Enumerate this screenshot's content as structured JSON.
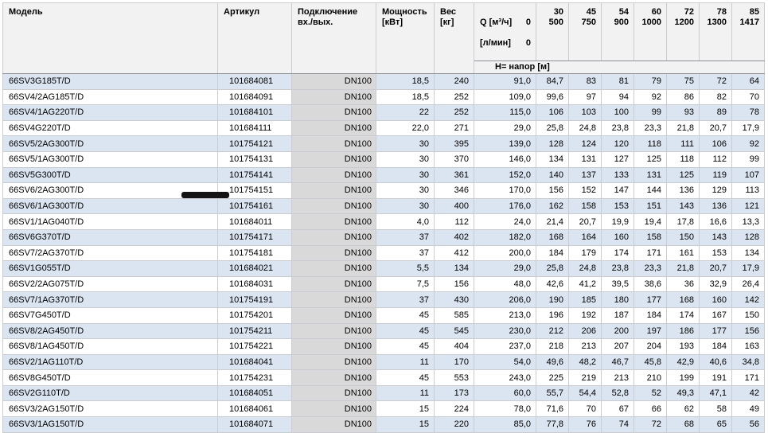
{
  "colors": {
    "header_bg": "#f2f2f2",
    "row_alt": "#dbe5f1",
    "conn_bg": "#d9d9d9",
    "border": "#c9cdd2",
    "header_line": "#8f9398"
  },
  "table": {
    "headers": {
      "model": "Модель",
      "article": "Артикул",
      "connection": "Подключение\nвх./вых.",
      "power": "Мощность\n[кВт]",
      "weight": "Вес\n[кг]"
    },
    "q_header": {
      "label1": "Q [м³/ч]",
      "zero1": "0",
      "label2": "[л/мин]",
      "zero2": "0"
    },
    "flow_columns": [
      {
        "m3h": "30",
        "lmin": "500"
      },
      {
        "m3h": "45",
        "lmin": "750"
      },
      {
        "m3h": "54",
        "lmin": "900"
      },
      {
        "m3h": "60",
        "lmin": "1000"
      },
      {
        "m3h": "72",
        "lmin": "1200"
      },
      {
        "m3h": "78",
        "lmin": "1300"
      },
      {
        "m3h": "85",
        "lmin": "1417"
      }
    ],
    "head_subheader": "Н= напор [м]",
    "rows": [
      {
        "model": "66SV3G185T/D",
        "article": "101684081",
        "connection": "DN100",
        "power": "18,5",
        "weight": "240",
        "heads": [
          "91,0",
          "84,7",
          "83",
          "81",
          "79",
          "75",
          "72",
          "64"
        ]
      },
      {
        "model": "66SV4/2AG185T/D",
        "article": "101684091",
        "connection": "DN100",
        "power": "18,5",
        "weight": "252",
        "heads": [
          "109,0",
          "99,6",
          "97",
          "94",
          "92",
          "86",
          "82",
          "70"
        ]
      },
      {
        "model": "66SV4/1AG220T/D",
        "article": "101684101",
        "connection": "DN100",
        "power": "22",
        "weight": "252",
        "heads": [
          "115,0",
          "106",
          "103",
          "100",
          "99",
          "93",
          "89",
          "78"
        ]
      },
      {
        "model": "66SV4G220T/D",
        "article": "101684111",
        "connection": "DN100",
        "power": "22,0",
        "weight": "271",
        "heads": [
          "29,0",
          "25,8",
          "24,8",
          "23,8",
          "23,3",
          "21,8",
          "20,7",
          "17,9"
        ]
      },
      {
        "model": "66SV5/2AG300T/D",
        "article": "101754121",
        "connection": "DN100",
        "power": "30",
        "weight": "395",
        "heads": [
          "139,0",
          "128",
          "124",
          "120",
          "118",
          "111",
          "106",
          "92"
        ]
      },
      {
        "model": "66SV5/1AG300T/D",
        "article": "101754131",
        "connection": "DN100",
        "power": "30",
        "weight": "370",
        "heads": [
          "146,0",
          "134",
          "131",
          "127",
          "125",
          "118",
          "112",
          "99"
        ]
      },
      {
        "model": "66SV5G300T/D",
        "article": "101754141",
        "connection": "DN100",
        "power": "30",
        "weight": "361",
        "heads": [
          "152,0",
          "140",
          "137",
          "133",
          "131",
          "125",
          "119",
          "107"
        ]
      },
      {
        "model": "66SV6/2AG300T/D",
        "article": "101754151",
        "connection": "DN100",
        "power": "30",
        "weight": "346",
        "heads": [
          "170,0",
          "156",
          "152",
          "147",
          "144",
          "136",
          "129",
          "113"
        ]
      },
      {
        "model": "66SV6/1AG300T/D",
        "article": "101754161",
        "connection": "DN100",
        "power": "30",
        "weight": "400",
        "heads": [
          "176,0",
          "162",
          "158",
          "153",
          "151",
          "143",
          "136",
          "121"
        ]
      },
      {
        "model": "66SV1/1AG040T/D",
        "article": "101684011",
        "connection": "DN100",
        "power": "4,0",
        "weight": "112",
        "heads": [
          "24,0",
          "21,4",
          "20,7",
          "19,9",
          "19,4",
          "17,8",
          "16,6",
          "13,3"
        ]
      },
      {
        "model": "66SV6G370T/D",
        "article": "101754171",
        "connection": "DN100",
        "power": "37",
        "weight": "402",
        "heads": [
          "182,0",
          "168",
          "164",
          "160",
          "158",
          "150",
          "143",
          "128"
        ]
      },
      {
        "model": "66SV7/2AG370T/D",
        "article": "101754181",
        "connection": "DN100",
        "power": "37",
        "weight": "412",
        "heads": [
          "200,0",
          "184",
          "179",
          "174",
          "171",
          "161",
          "153",
          "134"
        ]
      },
      {
        "model": "66SV1G055T/D",
        "article": "101684021",
        "connection": "DN100",
        "power": "5,5",
        "weight": "134",
        "heads": [
          "29,0",
          "25,8",
          "24,8",
          "23,8",
          "23,3",
          "21,8",
          "20,7",
          "17,9"
        ]
      },
      {
        "model": "66SV2/2AG075T/D",
        "article": "101684031",
        "connection": "DN100",
        "power": "7,5",
        "weight": "156",
        "heads": [
          "48,0",
          "42,6",
          "41,2",
          "39,5",
          "38,6",
          "36",
          "32,9",
          "26,4"
        ]
      },
      {
        "model": "66SV7/1AG370T/D",
        "article": "101754191",
        "connection": "DN100",
        "power": "37",
        "weight": "430",
        "heads": [
          "206,0",
          "190",
          "185",
          "180",
          "177",
          "168",
          "160",
          "142"
        ]
      },
      {
        "model": "66SV7G450T/D",
        "article": "101754201",
        "connection": "DN100",
        "power": "45",
        "weight": "585",
        "heads": [
          "213,0",
          "196",
          "192",
          "187",
          "184",
          "174",
          "167",
          "150"
        ]
      },
      {
        "model": "66SV8/2AG450T/D",
        "article": "101754211",
        "connection": "DN100",
        "power": "45",
        "weight": "545",
        "heads": [
          "230,0",
          "212",
          "206",
          "200",
          "197",
          "186",
          "177",
          "156"
        ]
      },
      {
        "model": "66SV8/1AG450T/D",
        "article": "101754221",
        "connection": "DN100",
        "power": "45",
        "weight": "404",
        "heads": [
          "237,0",
          "218",
          "213",
          "207",
          "204",
          "193",
          "184",
          "163"
        ]
      },
      {
        "model": "66SV2/1AG110T/D",
        "article": "101684041",
        "connection": "DN100",
        "power": "11",
        "weight": "170",
        "heads": [
          "54,0",
          "49,6",
          "48,2",
          "46,7",
          "45,8",
          "42,9",
          "40,6",
          "34,8"
        ]
      },
      {
        "model": "66SV8G450T/D",
        "article": "101754231",
        "connection": "DN100",
        "power": "45",
        "weight": "553",
        "heads": [
          "243,0",
          "225",
          "219",
          "213",
          "210",
          "199",
          "191",
          "171"
        ]
      },
      {
        "model": "66SV2G110T/D",
        "article": "101684051",
        "connection": "DN100",
        "power": "11",
        "weight": "173",
        "heads": [
          "60,0",
          "55,7",
          "54,4",
          "52,8",
          "52",
          "49,3",
          "47,1",
          "42"
        ]
      },
      {
        "model": "66SV3/2AG150T/D",
        "article": "101684061",
        "connection": "DN100",
        "power": "15",
        "weight": "224",
        "heads": [
          "78,0",
          "71,6",
          "70",
          "67",
          "66",
          "62",
          "58",
          "49"
        ]
      },
      {
        "model": "66SV3/1AG150T/D",
        "article": "101684071",
        "connection": "DN100",
        "power": "15",
        "weight": "220",
        "heads": [
          "85,0",
          "77,8",
          "76",
          "74",
          "72",
          "68",
          "65",
          "56"
        ]
      }
    ]
  }
}
